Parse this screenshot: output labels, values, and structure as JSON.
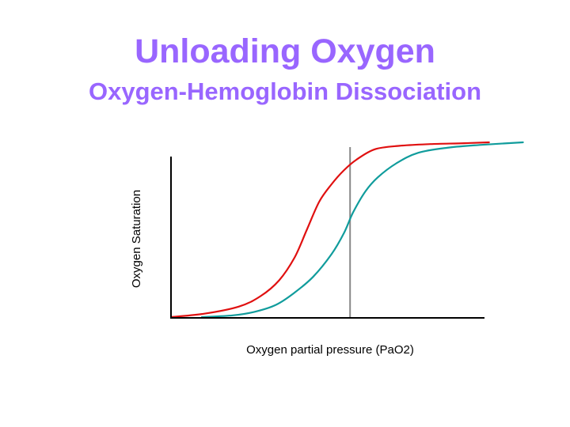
{
  "slide": {
    "title": "Unloading Oxygen",
    "subtitle": "Oxygen-Hemoglobin Dissociation"
  },
  "chart_data": {
    "type": "line",
    "xlabel": "Oxygen partial pressure (PaO2)",
    "ylabel": "Oxygen Saturation",
    "xlim": [
      0,
      100
    ],
    "ylim": [
      0,
      100
    ],
    "grid": false,
    "tick_labels": false,
    "reference_line": {
      "x": 58
    },
    "series": [
      {
        "color": "#e01010",
        "x": [
          0,
          11,
          22,
          29,
          35,
          40,
          44,
          48,
          52,
          56,
          60,
          66,
          74,
          84,
          95,
          103
        ],
        "y": [
          0,
          2,
          6,
          12,
          21,
          34,
          50,
          66,
          76,
          84,
          90,
          96,
          98,
          99,
          99.5,
          100
        ]
      },
      {
        "color": "#109c9c",
        "x": [
          10,
          20,
          27,
          34,
          40,
          46,
          52,
          56,
          59,
          63,
          67,
          73,
          80,
          90,
          100,
          114
        ],
        "y": [
          0,
          1,
          3,
          7,
          14,
          23,
          36,
          48,
          60,
          72,
          80,
          88,
          94,
          97,
          98.5,
          100
        ]
      }
    ]
  }
}
